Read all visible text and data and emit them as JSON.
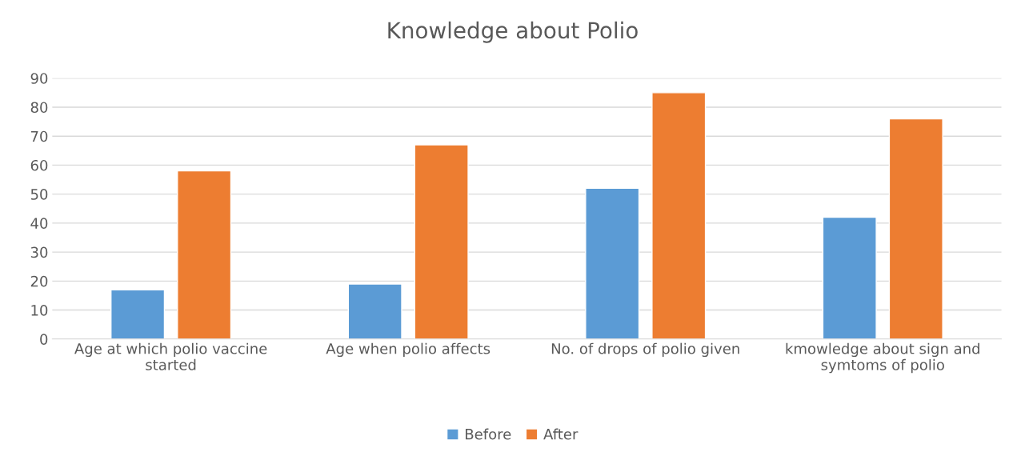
{
  "chart_data": {
    "type": "bar",
    "title": "Knowledge about Polio",
    "categories": [
      "Age at which polio vaccine started",
      "Age when polio affects",
      "No. of drops of polio given",
      "kmowledge about sign and symtoms of polio"
    ],
    "series": [
      {
        "name": "Before",
        "color": "#5b9bd5",
        "values": [
          17,
          19,
          52,
          42
        ]
      },
      {
        "name": "After",
        "color": "#ed7d31",
        "values": [
          58,
          67,
          85,
          76
        ]
      }
    ],
    "ylim": [
      0,
      90
    ],
    "yticks": [
      0,
      10,
      20,
      30,
      40,
      50,
      60,
      70,
      80,
      90
    ],
    "grid": "y",
    "legend": "bottom"
  }
}
